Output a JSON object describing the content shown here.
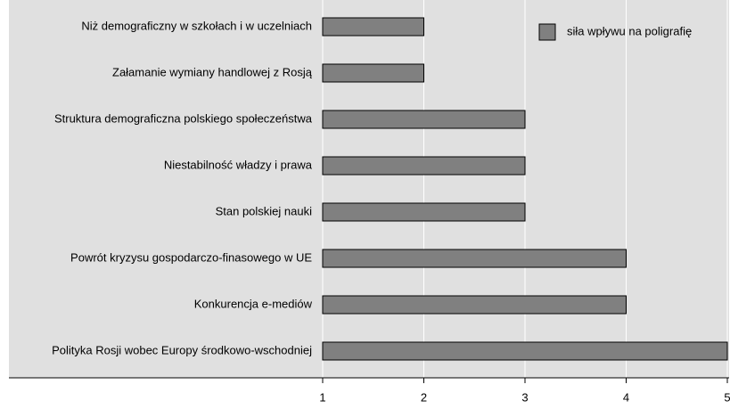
{
  "chart_data": {
    "type": "barh",
    "categories": [
      "Niż demograficzny w szkołach i w uczelniach",
      "Załamanie wymiany handlowej z Rosją",
      "Struktura demograficzna polskiego społeczeństwa",
      "Niestabilność władzy i prawa",
      "Stan polskiej nauki",
      "Powrót kryzysu gospodarczo-finasowego w UE",
      "Konkurencja e-mediów",
      "Polityka Rosji wobec Europy środkowo-wschodniej"
    ],
    "series": [
      {
        "name": "siła wpływu na poligrafię",
        "color": "#808080",
        "values": [
          2,
          2,
          3,
          3,
          3,
          4,
          4,
          5
        ]
      }
    ],
    "xlim": [
      1,
      5
    ],
    "xticks": [
      1,
      2,
      3,
      4,
      5
    ],
    "grid": true,
    "legend": "upper right"
  }
}
